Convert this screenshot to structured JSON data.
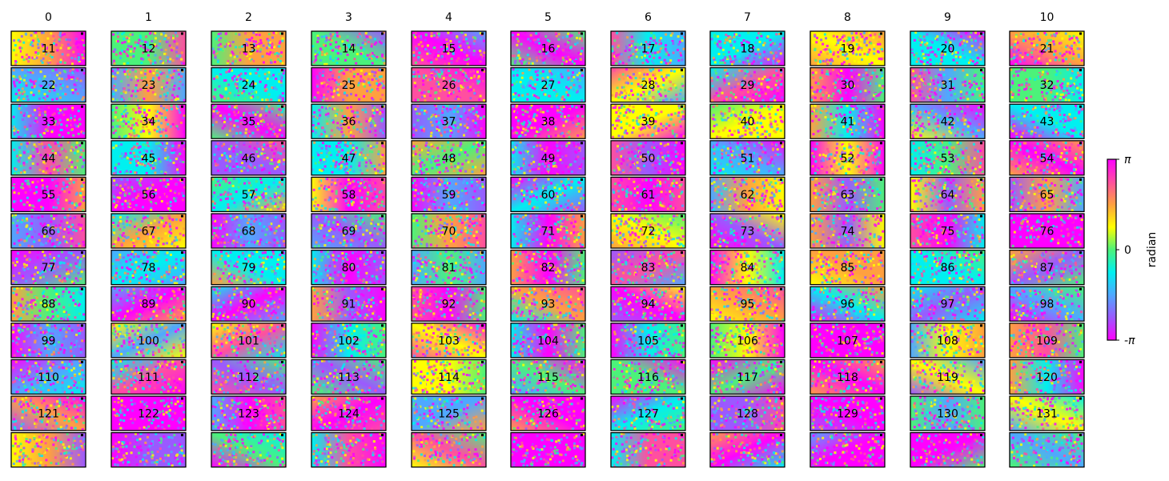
{
  "chart_data": {
    "type": "heatmap",
    "description_kind": "interferogram phase grid",
    "column_headers": [
      "0",
      "1",
      "2",
      "3",
      "4",
      "5",
      "6",
      "7",
      "8",
      "9",
      "10"
    ],
    "panel_labels": [
      [
        "11",
        "12",
        "13",
        "14",
        "15",
        "16",
        "17",
        "18",
        "19",
        "20",
        "21"
      ],
      [
        "22",
        "23",
        "24",
        "25",
        "26",
        "27",
        "28",
        "29",
        "30",
        "31",
        "32"
      ],
      [
        "33",
        "34",
        "35",
        "36",
        "37",
        "38",
        "39",
        "40",
        "41",
        "42",
        "43"
      ],
      [
        "44",
        "45",
        "46",
        "47",
        "48",
        "49",
        "50",
        "51",
        "52",
        "53",
        "54"
      ],
      [
        "55",
        "56",
        "57",
        "58",
        "59",
        "60",
        "61",
        "62",
        "63",
        "64",
        "65"
      ],
      [
        "66",
        "67",
        "68",
        "69",
        "70",
        "71",
        "72",
        "73",
        "74",
        "75",
        "76"
      ],
      [
        "77",
        "78",
        "79",
        "80",
        "81",
        "82",
        "83",
        "84",
        "85",
        "86",
        "87"
      ],
      [
        "88",
        "89",
        "90",
        "91",
        "92",
        "93",
        "94",
        "95",
        "96",
        "97",
        "98"
      ],
      [
        "99",
        "100",
        "101",
        "102",
        "103",
        "104",
        "105",
        "106",
        "107",
        "108",
        "109"
      ],
      [
        "110",
        "111",
        "112",
        "113",
        "114",
        "115",
        "116",
        "117",
        "118",
        "119",
        "120"
      ],
      [
        "121",
        "122",
        "123",
        "124",
        "125",
        "126",
        "127",
        "128",
        "129",
        "130",
        "131"
      ],
      [
        "",
        "",
        "",
        "",
        "",
        "",
        "",
        "",
        "",
        "",
        ""
      ]
    ],
    "colorbar": {
      "label": "radian",
      "tick_labels": [
        "π",
        "0",
        "-π"
      ],
      "range": [
        -3.14159,
        3.14159
      ],
      "colormap": [
        "#ff00ff",
        "#9b59ff",
        "#4fa8ff",
        "#00f0f0",
        "#4cf27a",
        "#ffff00",
        "#ffa040",
        "#ff4fa0",
        "#ff00ff"
      ]
    },
    "grid": {
      "rows": 12,
      "cols": 11
    }
  }
}
